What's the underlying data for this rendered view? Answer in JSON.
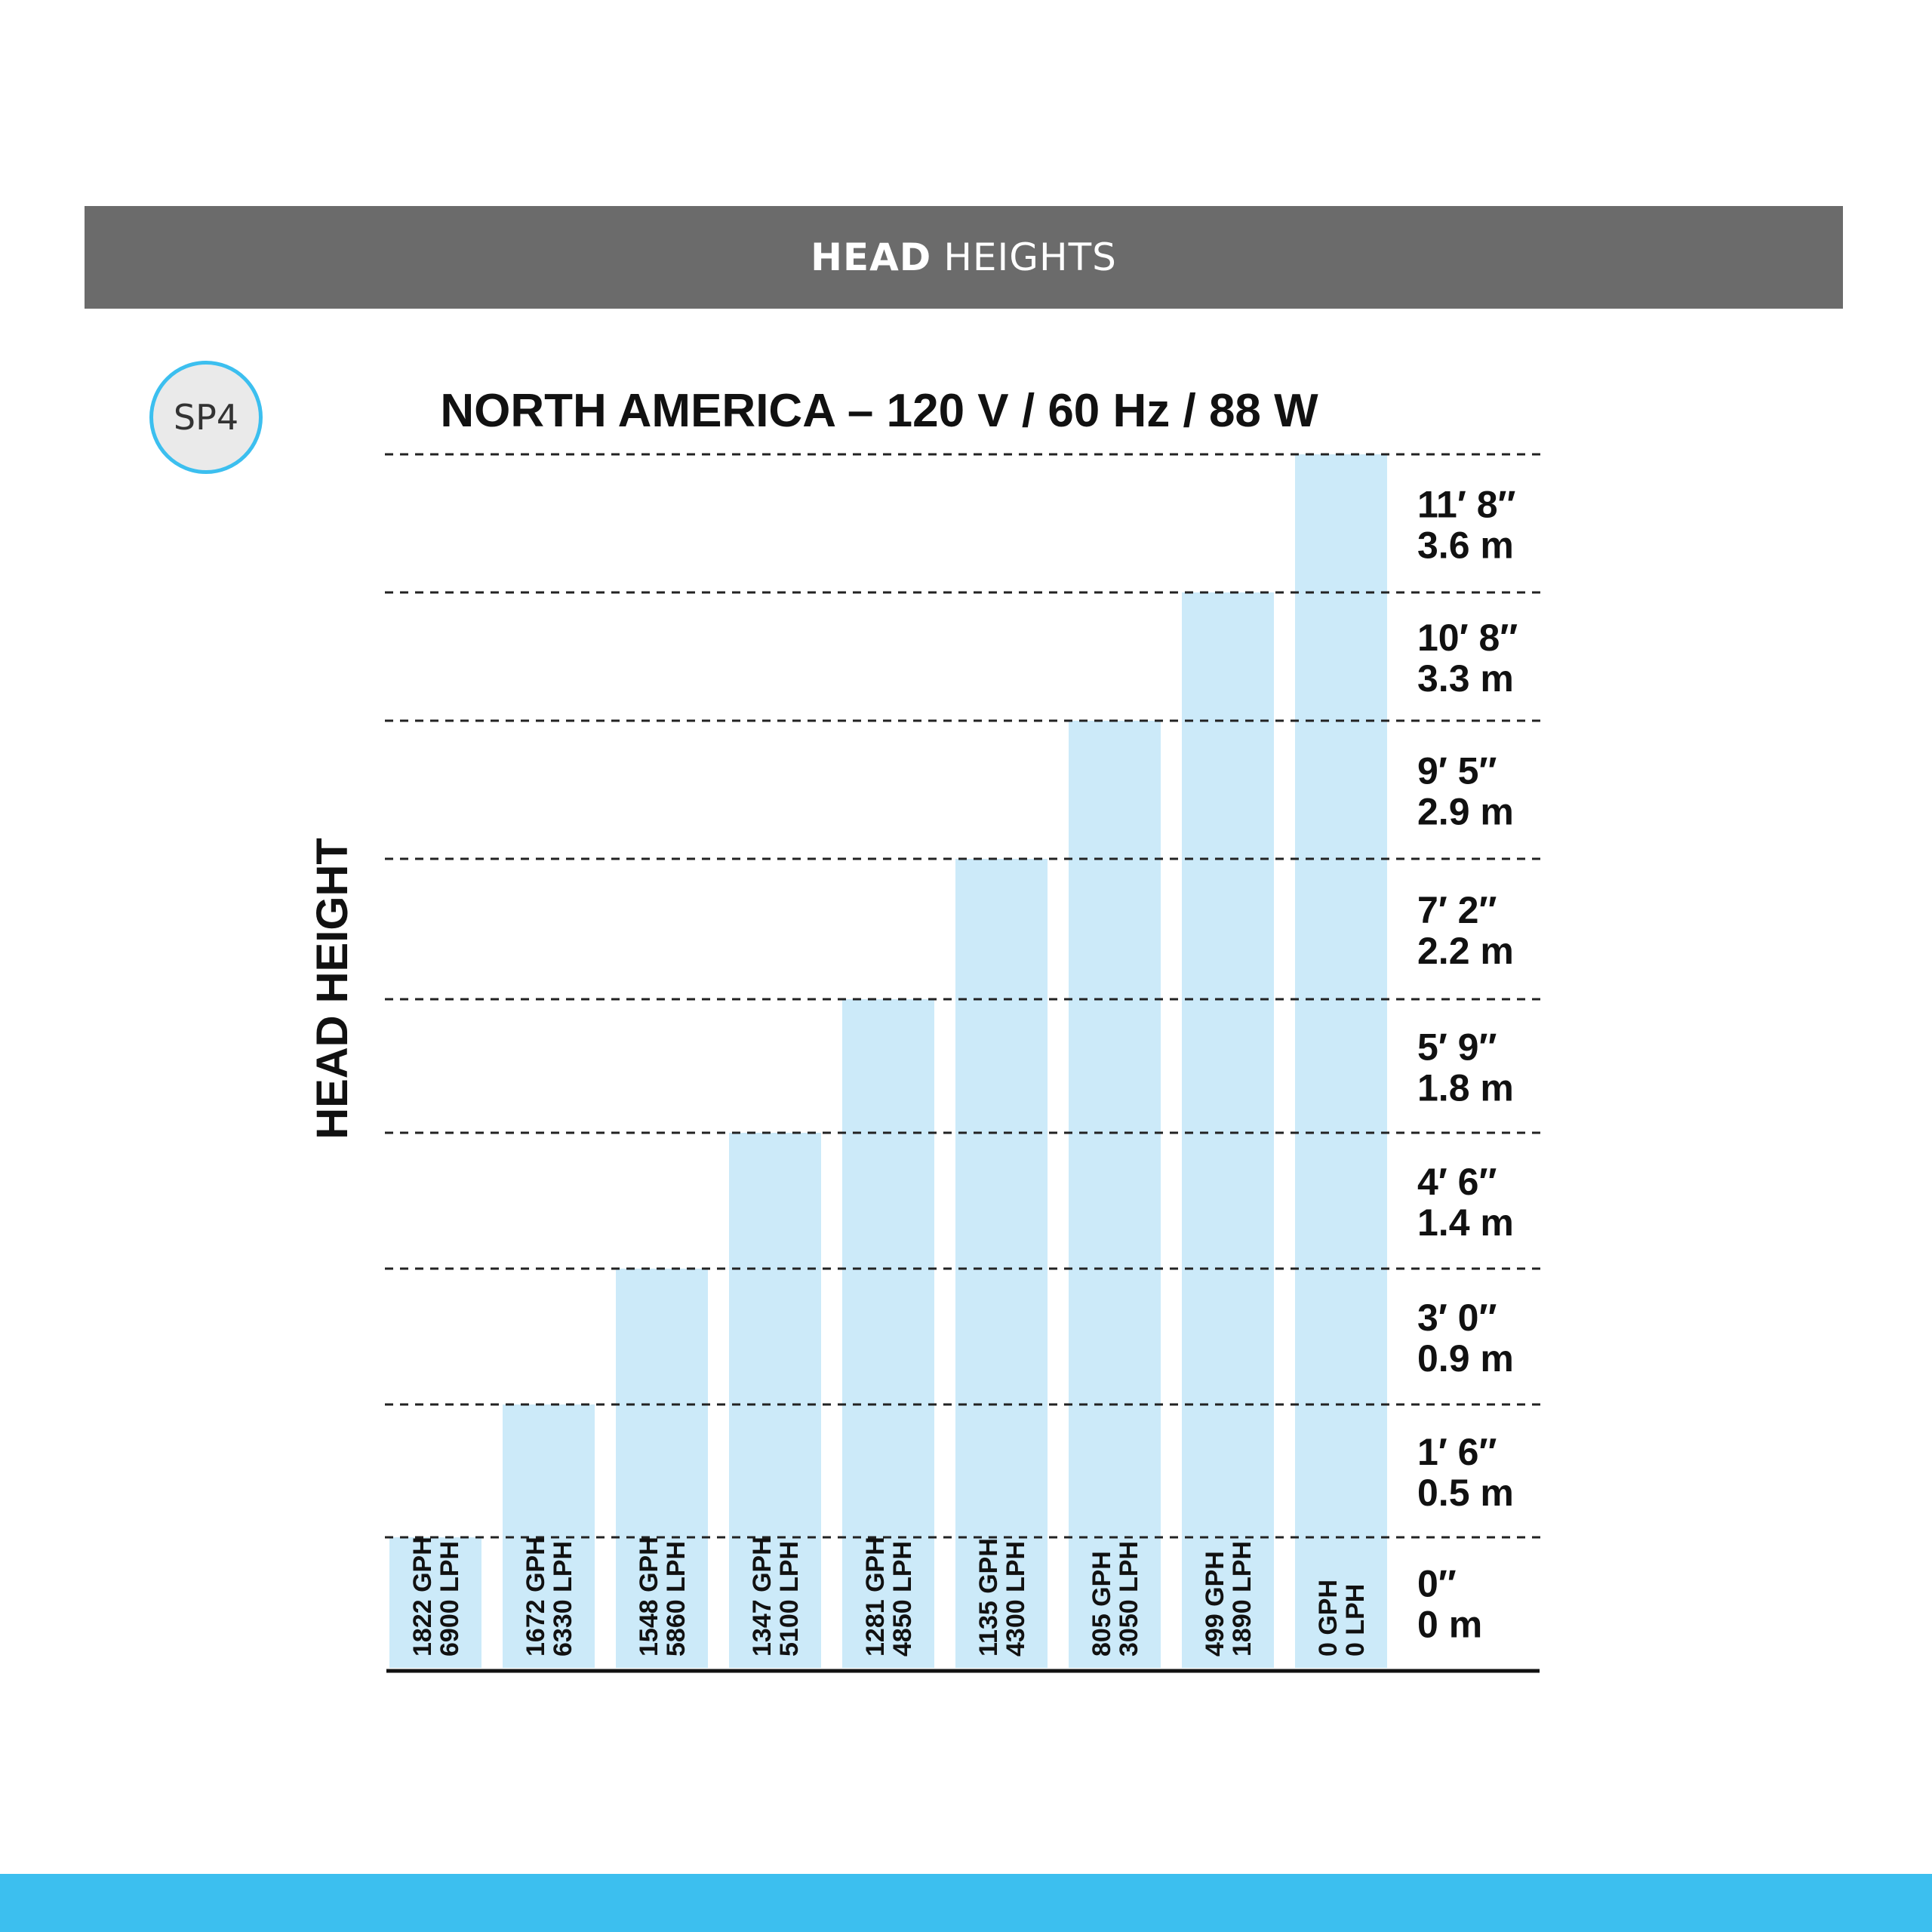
{
  "header": {
    "title_bold": "HEAD",
    "title_rest": "HEIGHTS"
  },
  "badge": {
    "label": "SP4"
  },
  "colors": {
    "banner": "#6b6b6b",
    "bar": "#cceaf9",
    "accent": "#3cbfef"
  },
  "chart_data": {
    "type": "bar",
    "title": "NORTH AMERICA – 120 V / 60 Hz / 88 W",
    "ylabel": "HEAD HEIGHT",
    "xlabel": "",
    "grid": true,
    "y_ticks": [
      {
        "ft": "0″",
        "m": "0 m"
      },
      {
        "ft": "1′ 6″",
        "m": "0.5 m"
      },
      {
        "ft": "3′ 0″",
        "m": "0.9 m"
      },
      {
        "ft": "4′ 6″",
        "m": "1.4 m"
      },
      {
        "ft": "5′ 9″",
        "m": "1.8 m"
      },
      {
        "ft": "7′ 2″",
        "m": "2.2 m"
      },
      {
        "ft": "9′ 5″",
        "m": "2.9 m"
      },
      {
        "ft": "10′ 8″",
        "m": "3.3 m"
      },
      {
        "ft": "11′ 8″",
        "m": "3.6 m"
      }
    ],
    "bars": [
      {
        "gph": "1822 GPH",
        "lph": "6900 LPH",
        "head_level": 0
      },
      {
        "gph": "1672 GPH",
        "lph": "6330 LPH",
        "head_level": 1
      },
      {
        "gph": "1548 GPH",
        "lph": "5860 LPH",
        "head_level": 2
      },
      {
        "gph": "1347 GPH",
        "lph": "5100 LPH",
        "head_level": 3
      },
      {
        "gph": "1281 GPH",
        "lph": "4850 LPH",
        "head_level": 4
      },
      {
        "gph": "1135 GPH",
        "lph": "4300 LPH",
        "head_level": 5
      },
      {
        "gph": "805 GPH",
        "lph": "3050 LPH",
        "head_level": 6
      },
      {
        "gph": "499 GPH",
        "lph": "1890 LPH",
        "head_level": 7
      },
      {
        "gph": "0 GPH",
        "lph": "0 LPH",
        "head_level": 8
      }
    ]
  }
}
